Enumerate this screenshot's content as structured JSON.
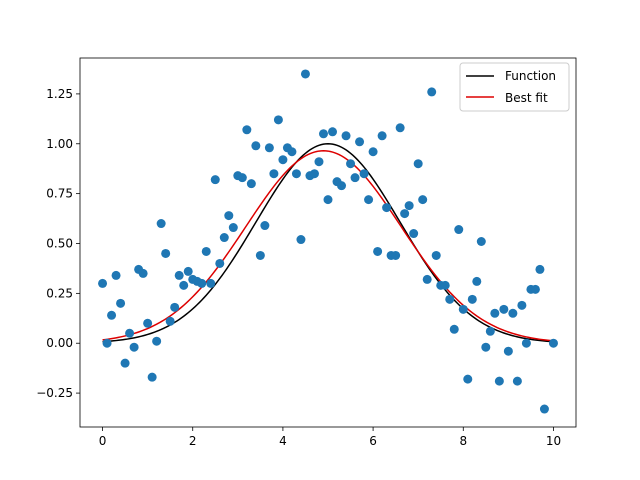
{
  "chart_data": {
    "type": "scatter",
    "title": "",
    "xlabel": "",
    "ylabel": "",
    "xlim": [
      -0.5,
      10.5
    ],
    "ylim": [
      -0.42,
      1.43
    ],
    "xticks": [
      0,
      2,
      4,
      6,
      8,
      10
    ],
    "xtick_labels": [
      "0",
      "2",
      "4",
      "6",
      "8",
      "10"
    ],
    "yticks": [
      -0.25,
      0.0,
      0.25,
      0.5,
      0.75,
      1.0,
      1.25
    ],
    "ytick_labels": [
      "−0.25",
      "0.00",
      "0.25",
      "0.50",
      "0.75",
      "1.00",
      "1.25"
    ],
    "grid": false,
    "legend_position": "top-right",
    "colors": {
      "points": "#1f77b4",
      "function": "#000000",
      "best_fit": "#dd0000"
    },
    "series": [
      {
        "name": "Function",
        "kind": "line",
        "color": "#000000",
        "model": "gaussian",
        "amplitude": 1.0,
        "center": 5.0,
        "sigma": 1.6,
        "x_range": [
          0,
          10
        ]
      },
      {
        "name": "Best fit",
        "kind": "line",
        "color": "#dd0000",
        "model": "gaussian",
        "amplitude": 0.965,
        "center": 4.9,
        "sigma": 1.72,
        "x_range": [
          0,
          10
        ]
      },
      {
        "kind": "scatter",
        "color": "#1f77b4",
        "points": [
          [
            0.0,
            0.3
          ],
          [
            0.1,
            0.0
          ],
          [
            0.2,
            0.14
          ],
          [
            0.3,
            0.34
          ],
          [
            0.4,
            0.2
          ],
          [
            0.5,
            -0.1
          ],
          [
            0.6,
            0.05
          ],
          [
            0.7,
            -0.02
          ],
          [
            0.8,
            0.37
          ],
          [
            0.9,
            0.35
          ],
          [
            1.0,
            0.1
          ],
          [
            1.1,
            -0.17
          ],
          [
            1.2,
            0.01
          ],
          [
            1.3,
            0.6
          ],
          [
            1.4,
            0.45
          ],
          [
            1.5,
            0.11
          ],
          [
            1.6,
            0.18
          ],
          [
            1.7,
            0.34
          ],
          [
            1.8,
            0.29
          ],
          [
            1.9,
            0.36
          ],
          [
            2.0,
            0.32
          ],
          [
            2.1,
            0.31
          ],
          [
            2.2,
            0.3
          ],
          [
            2.3,
            0.46
          ],
          [
            2.4,
            0.3
          ],
          [
            2.5,
            0.82
          ],
          [
            2.6,
            0.4
          ],
          [
            2.7,
            0.53
          ],
          [
            2.8,
            0.64
          ],
          [
            2.9,
            0.58
          ],
          [
            3.0,
            0.84
          ],
          [
            3.1,
            0.83
          ],
          [
            3.2,
            1.07
          ],
          [
            3.3,
            0.8
          ],
          [
            3.4,
            0.99
          ],
          [
            3.5,
            0.44
          ],
          [
            3.6,
            0.59
          ],
          [
            3.7,
            0.98
          ],
          [
            3.8,
            0.85
          ],
          [
            3.9,
            1.12
          ],
          [
            4.0,
            0.92
          ],
          [
            4.1,
            0.98
          ],
          [
            4.2,
            0.96
          ],
          [
            4.3,
            0.85
          ],
          [
            4.4,
            0.52
          ],
          [
            4.5,
            1.35
          ],
          [
            4.6,
            0.84
          ],
          [
            4.7,
            0.85
          ],
          [
            4.8,
            0.91
          ],
          [
            4.9,
            1.05
          ],
          [
            5.0,
            0.72
          ],
          [
            5.1,
            1.06
          ],
          [
            5.2,
            0.81
          ],
          [
            5.3,
            0.79
          ],
          [
            5.4,
            1.04
          ],
          [
            5.5,
            0.9
          ],
          [
            5.6,
            0.83
          ],
          [
            5.7,
            1.01
          ],
          [
            5.8,
            0.85
          ],
          [
            5.9,
            0.72
          ],
          [
            6.0,
            0.96
          ],
          [
            6.1,
            0.46
          ],
          [
            6.2,
            1.04
          ],
          [
            6.3,
            0.68
          ],
          [
            6.4,
            0.44
          ],
          [
            6.5,
            0.44
          ],
          [
            6.6,
            1.08
          ],
          [
            6.7,
            0.65
          ],
          [
            6.8,
            0.69
          ],
          [
            6.9,
            0.55
          ],
          [
            7.0,
            0.9
          ],
          [
            7.1,
            0.72
          ],
          [
            7.2,
            0.32
          ],
          [
            7.3,
            1.26
          ],
          [
            7.4,
            0.44
          ],
          [
            7.5,
            0.29
          ],
          [
            7.6,
            0.29
          ],
          [
            7.7,
            0.22
          ],
          [
            7.8,
            0.07
          ],
          [
            7.9,
            0.57
          ],
          [
            8.0,
            0.17
          ],
          [
            8.1,
            -0.18
          ],
          [
            8.2,
            0.22
          ],
          [
            8.3,
            0.31
          ],
          [
            8.4,
            0.51
          ],
          [
            8.5,
            -0.02
          ],
          [
            8.6,
            0.06
          ],
          [
            8.7,
            0.15
          ],
          [
            8.8,
            -0.19
          ],
          [
            8.9,
            0.17
          ],
          [
            9.0,
            -0.04
          ],
          [
            9.1,
            0.15
          ],
          [
            9.2,
            -0.19
          ],
          [
            9.3,
            0.19
          ],
          [
            9.4,
            0.0
          ],
          [
            9.5,
            0.27
          ],
          [
            9.6,
            0.27
          ],
          [
            9.7,
            0.37
          ],
          [
            9.8,
            -0.33
          ],
          [
            10.0,
            0.0
          ]
        ]
      }
    ]
  }
}
